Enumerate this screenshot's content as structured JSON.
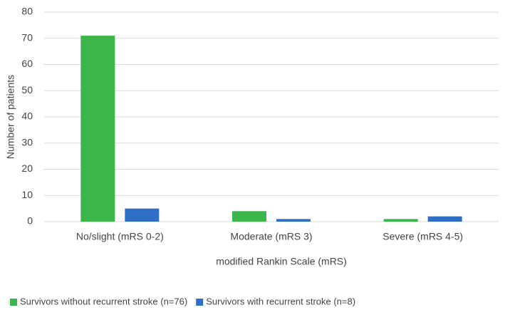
{
  "chart_data": {
    "type": "bar",
    "categories": [
      "No/slight (mRS 0-2)",
      "Moderate (mRS 3)",
      "Severe (mRS 4-5)"
    ],
    "series": [
      {
        "name": "Survivors without recurrent stroke (n=76)",
        "color": "#3cb64a",
        "values": [
          71,
          4,
          1
        ]
      },
      {
        "name": "Survivors with recurrent stroke (n=8)",
        "color": "#2f6fc6",
        "values": [
          5,
          1,
          2
        ]
      }
    ],
    "xlabel": "modified Rankin Scale (mRS)",
    "ylabel": "Number of patients",
    "ylim": [
      0,
      80
    ],
    "yticks": [
      0,
      10,
      20,
      30,
      40,
      50,
      60,
      70,
      80
    ],
    "grid": true,
    "legend": "bottom"
  }
}
